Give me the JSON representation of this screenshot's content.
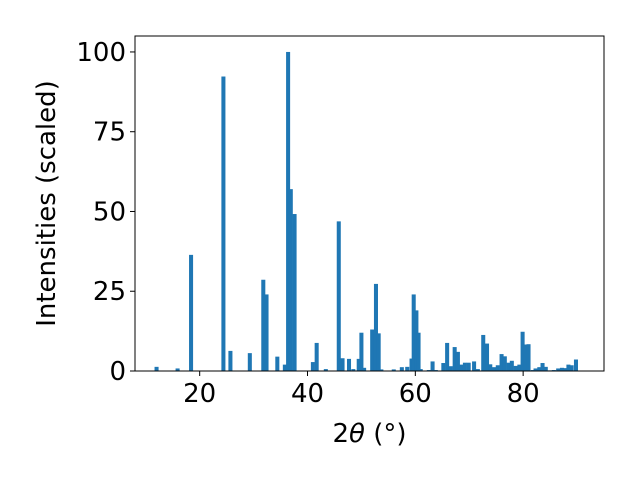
{
  "chart_data": {
    "type": "bar",
    "xlabel_prefix": "2",
    "xlabel_symbol": "θ",
    "xlabel_suffix": " (°)",
    "ylabel": "Intensities (scaled)",
    "xlim": [
      8,
      95
    ],
    "ylim": [
      0,
      105
    ],
    "bar_width": 0.75,
    "color": "#1f77b4",
    "xticks": [
      20,
      40,
      60,
      80
    ],
    "yticks": [
      0,
      25,
      50,
      75,
      100
    ],
    "x": [
      12.0,
      15.9,
      18.4,
      24.4,
      25.7,
      29.3,
      31.8,
      32.4,
      34.4,
      35.8,
      36.4,
      36.9,
      37.6,
      41.0,
      41.7,
      43.4,
      45.8,
      46.5,
      47.7,
      48.5,
      49.5,
      50.0,
      50.5,
      52.0,
      52.7,
      53.2,
      53.7,
      56.0,
      57.5,
      58.5,
      59.3,
      59.7,
      60.2,
      60.6,
      61.0,
      62.5,
      63.2,
      63.8,
      65.2,
      65.9,
      66.6,
      67.3,
      67.9,
      68.5,
      69.2,
      69.9,
      70.9,
      71.6,
      72.6,
      73.3,
      73.9,
      74.6,
      75.3,
      76.0,
      76.6,
      77.3,
      77.9,
      78.6,
      79.3,
      79.9,
      80.4,
      81.0,
      81.8,
      82.3,
      83.0,
      83.6,
      84.2,
      85.0,
      85.7,
      86.5,
      87.2,
      87.8,
      88.4,
      89.0,
      89.8
    ],
    "values": [
      1.3,
      0.8,
      36.4,
      92.3,
      6.3,
      5.6,
      28.6,
      24.0,
      4.5,
      2.0,
      100.0,
      57.0,
      49.2,
      2.8,
      8.8,
      0.6,
      46.9,
      4.0,
      3.8,
      0.6,
      3.8,
      12.0,
      1.0,
      13.0,
      27.3,
      11.8,
      0.5,
      0.5,
      1.2,
      1.3,
      3.9,
      24.0,
      19.0,
      12.0,
      0.6,
      0.3,
      3.0,
      0.3,
      2.5,
      8.8,
      1.5,
      7.5,
      6.0,
      2.0,
      2.6,
      2.6,
      3.0,
      0.6,
      11.3,
      8.6,
      2.1,
      1.2,
      1.8,
      5.3,
      4.6,
      2.6,
      3.2,
      1.6,
      2.0,
      12.3,
      8.3,
      8.4,
      0.3,
      0.8,
      1.2,
      2.5,
      1.3,
      0.2,
      0.3,
      0.8,
      1.0,
      0.9,
      2.0,
      1.8,
      3.6
    ]
  }
}
